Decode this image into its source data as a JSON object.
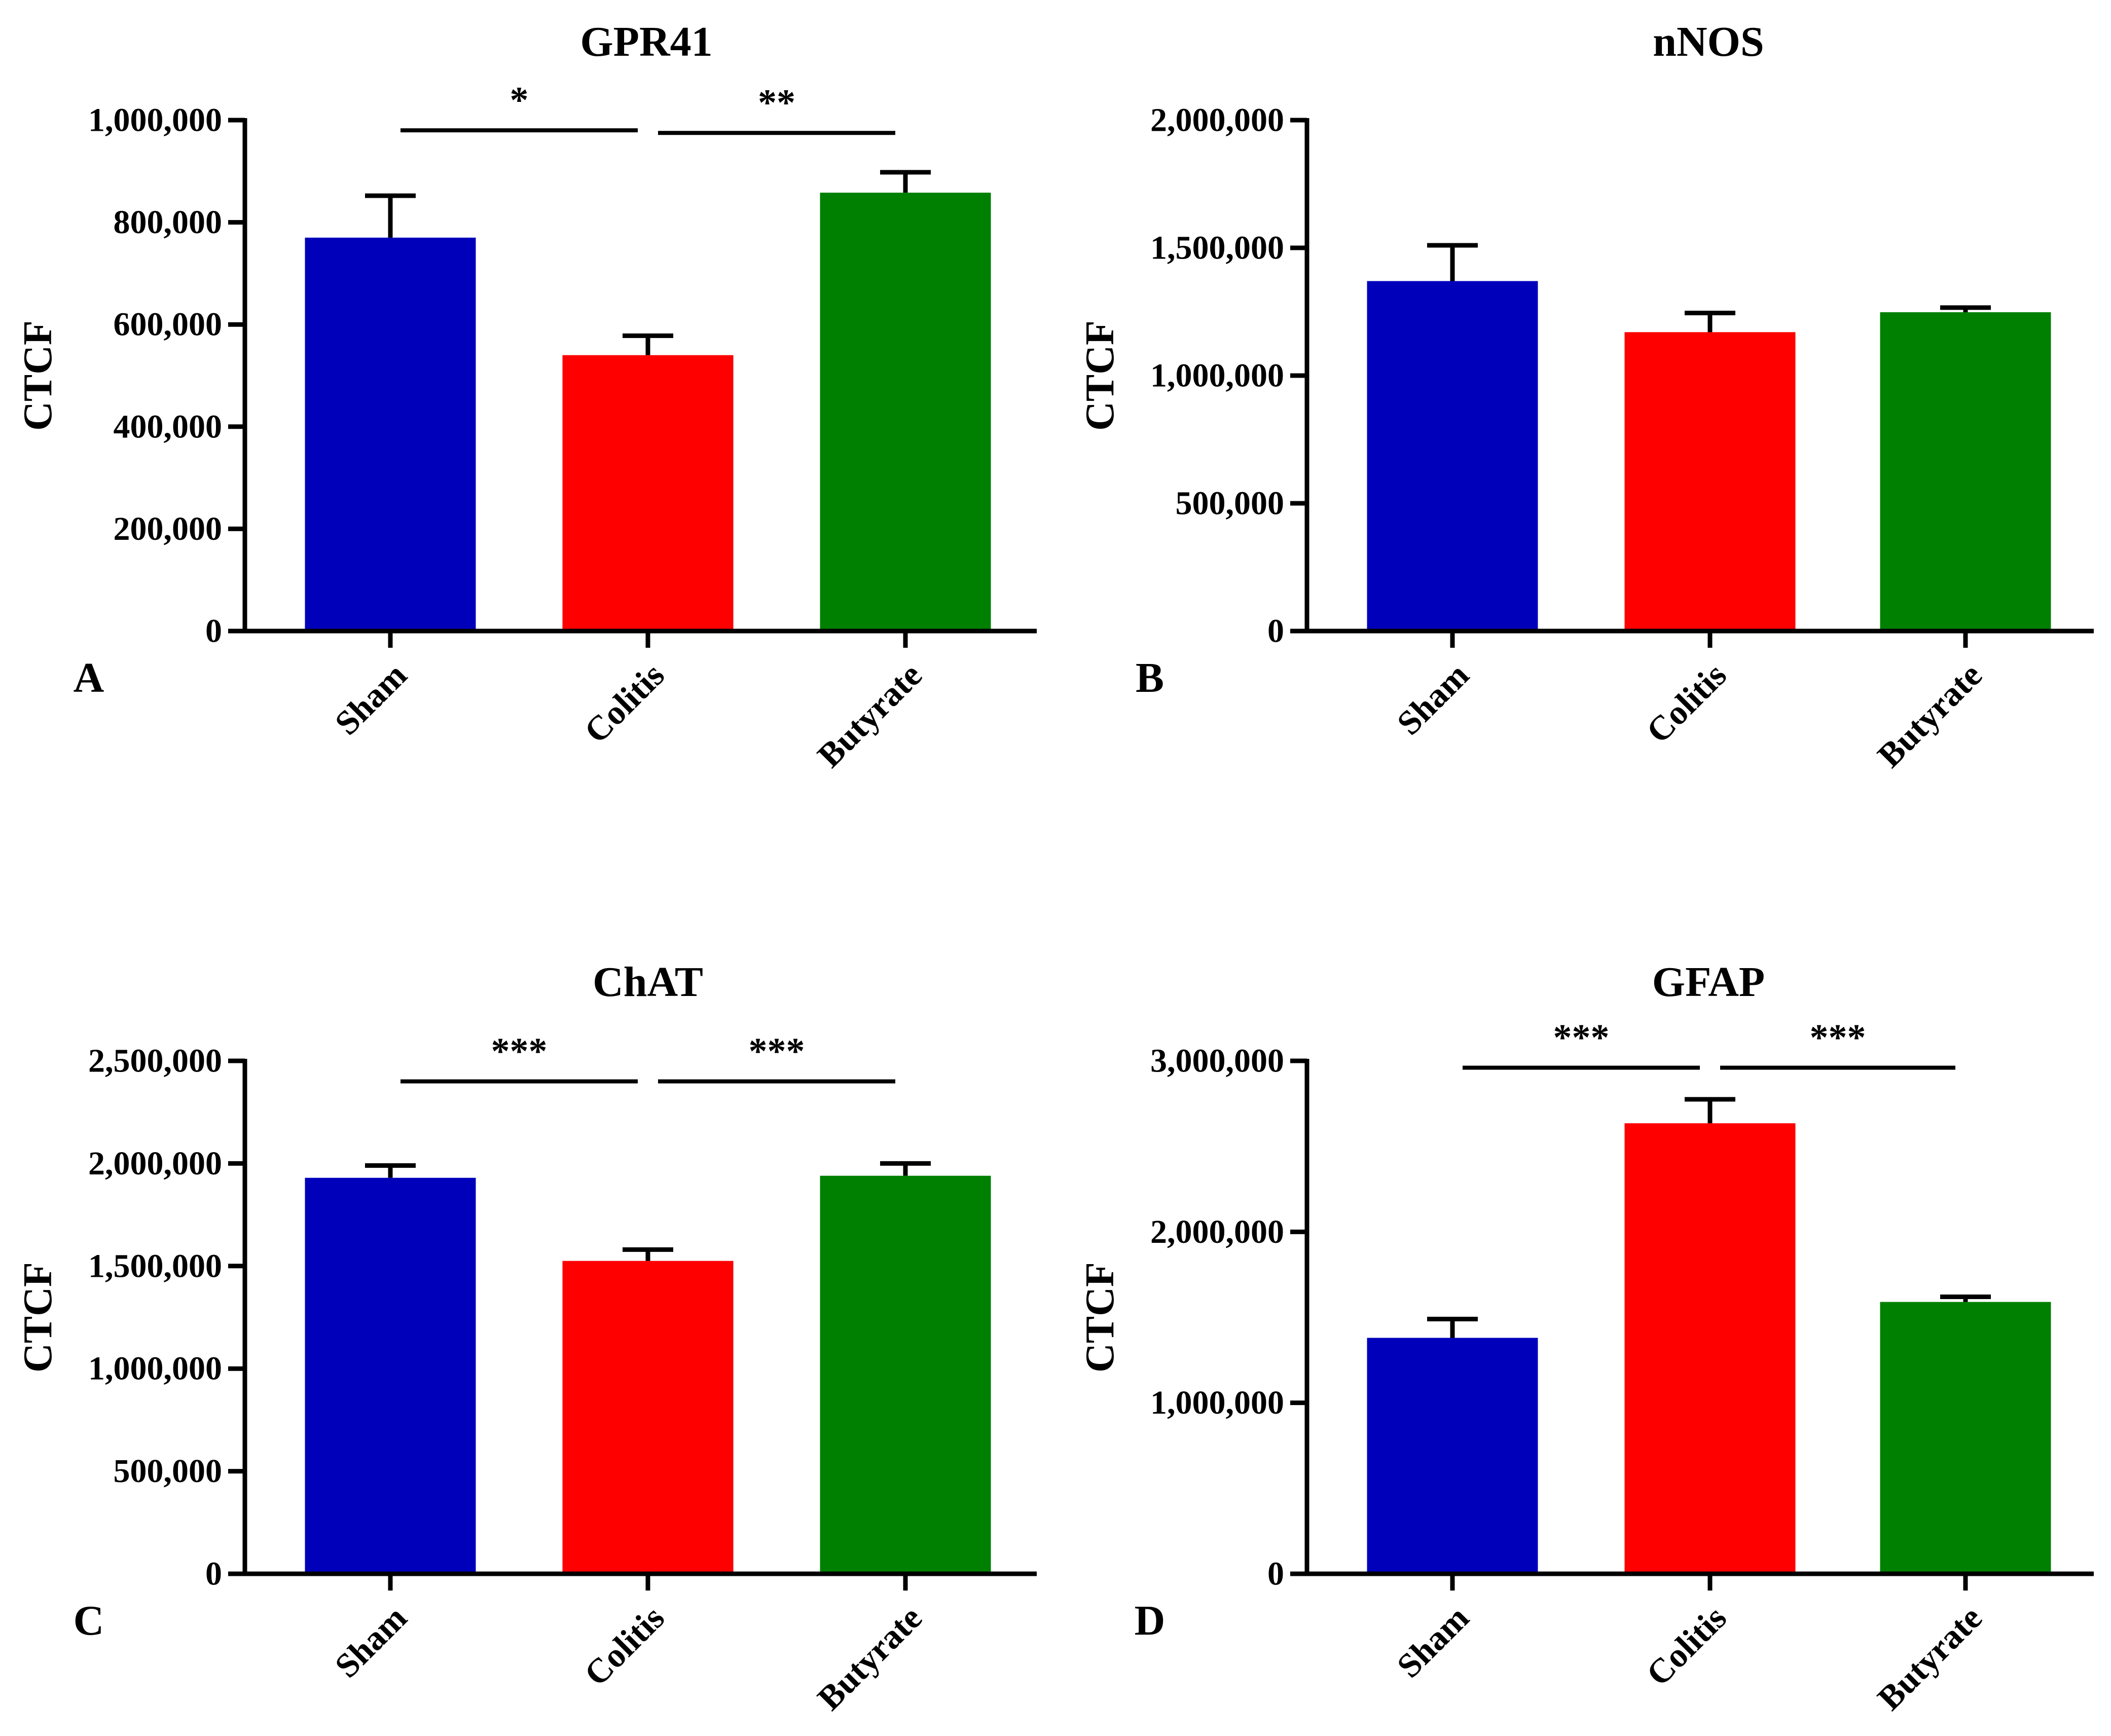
{
  "figure": {
    "colors": {
      "axis": "#000000",
      "bar_sham": "#0000BB",
      "bar_colitis": "#FF0000",
      "bar_butyrate": "#008000"
    },
    "icons": []
  },
  "chart_data": [
    {
      "type": "bar",
      "panel_label": "A",
      "title": "GPR41",
      "xlabel": "",
      "ylabel": "CTCF",
      "categories": [
        "Sham",
        "Colitis",
        "Butyrate"
      ],
      "values": [
        770000,
        540000,
        858000
      ],
      "error": [
        82000,
        38000,
        40000
      ],
      "colors": [
        "#0000BB",
        "#FF0000",
        "#008000"
      ],
      "ylim": [
        0,
        1000000
      ],
      "yticks": [
        0,
        200000,
        400000,
        600000,
        800000,
        1000000
      ],
      "ytick_labels": [
        "0",
        "200,000",
        "400,000",
        "600,000",
        "800,000",
        "1,000,000"
      ],
      "grid": false,
      "significance": [
        {
          "from": 0,
          "to": 1,
          "label": "*",
          "y": 980000
        },
        {
          "from": 1,
          "to": 2,
          "label": "**",
          "y": 975000
        }
      ]
    },
    {
      "type": "bar",
      "panel_label": "B",
      "title": "nNOS",
      "xlabel": "",
      "ylabel": "CTCF",
      "categories": [
        "Sham",
        "Colitis",
        "Butyrate"
      ],
      "values": [
        1370000,
        1170000,
        1248000
      ],
      "error": [
        140000,
        75000,
        18000
      ],
      "colors": [
        "#0000BB",
        "#FF0000",
        "#008000"
      ],
      "ylim": [
        0,
        2000000
      ],
      "yticks": [
        0,
        500000,
        1000000,
        1500000,
        2000000
      ],
      "ytick_labels": [
        "0",
        "500,000",
        "1,000,000",
        "1,500,000",
        "2,000,000"
      ],
      "grid": false,
      "significance": []
    },
    {
      "type": "bar",
      "panel_label": "C",
      "title": "ChAT",
      "xlabel": "",
      "ylabel": "CTCF",
      "categories": [
        "Sham",
        "Colitis",
        "Butyrate"
      ],
      "values": [
        1930000,
        1525000,
        1940000
      ],
      "error": [
        60000,
        55000,
        60000
      ],
      "colors": [
        "#0000BB",
        "#FF0000",
        "#008000"
      ],
      "ylim": [
        0,
        2500000
      ],
      "yticks": [
        0,
        500000,
        1000000,
        1500000,
        2000000,
        2500000
      ],
      "ytick_labels": [
        "0",
        "500,000",
        "1,000,000",
        "1,500,000",
        "2,000,000",
        "2,500,000"
      ],
      "grid": false,
      "significance": [
        {
          "from": 0,
          "to": 1,
          "label": "***",
          "y": 2400000
        },
        {
          "from": 1,
          "to": 2,
          "label": "***",
          "y": 2400000
        }
      ]
    },
    {
      "type": "bar",
      "panel_label": "D",
      "title": "GFAP",
      "xlabel": "",
      "ylabel": "CTCF",
      "categories": [
        "Sham",
        "Colitis",
        "Butyrate"
      ],
      "values": [
        1380000,
        2635000,
        1590000
      ],
      "error": [
        110000,
        140000,
        30000
      ],
      "colors": [
        "#0000BB",
        "#FF0000",
        "#008000"
      ],
      "ylim": [
        0,
        3000000
      ],
      "yticks": [
        0,
        1000000,
        2000000,
        3000000
      ],
      "ytick_labels": [
        "0",
        "1,000,000",
        "2,000,000",
        "3,000,000"
      ],
      "grid": false,
      "significance": [
        {
          "from": 0,
          "to": 1,
          "label": "***",
          "y": 2960000
        },
        {
          "from": 1,
          "to": 2,
          "label": "***",
          "y": 2960000
        }
      ]
    }
  ]
}
